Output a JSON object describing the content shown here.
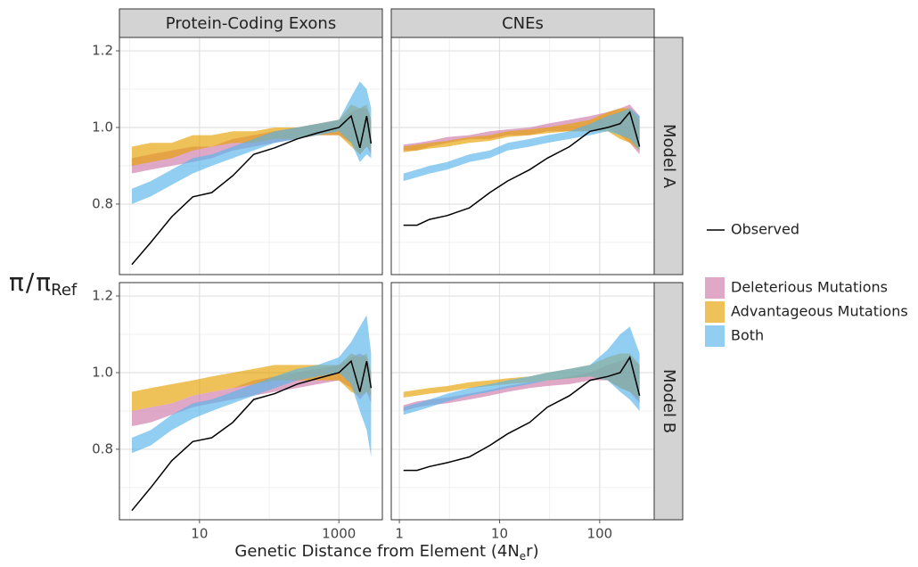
{
  "chart_data": {
    "type": "ribbon",
    "x_label": {
      "text": "Genetic Distance from Element (4N",
      "subscript": "e",
      "suffix": "r)"
    },
    "y_label": {
      "parts": [
        "π",
        "/",
        "π"
      ],
      "subscript": "Ref"
    },
    "log_x": true,
    "grid": true,
    "series_styles": [
      {
        "name": "Deleterious Mutations",
        "color": "#cc79a7"
      },
      {
        "name": "Advantageous Mutations",
        "color": "#e69f00"
      },
      {
        "name": "Both",
        "color": "#56b4e9"
      }
    ],
    "observed_style": {
      "name": "Observed",
      "color": "#000000"
    },
    "columns": [
      {
        "label": "Protein-Coding Exons",
        "xlim": [
          0.71,
          4200
        ],
        "xticks": [
          10,
          1000
        ],
        "xminor": [
          1,
          100
        ],
        "x": [
          1.07,
          2,
          4,
          8,
          15,
          30,
          60,
          120,
          250,
          500,
          1000,
          1500,
          2000,
          2500,
          2900
        ]
      },
      {
        "label": "CNEs",
        "xlim": [
          0.83,
          350
        ],
        "xticks": [
          1,
          10,
          100
        ],
        "xminor": [
          3.16,
          31.6
        ],
        "x": [
          1.1,
          1.5,
          2,
          3,
          5,
          8,
          12,
          20,
          30,
          50,
          80,
          120,
          160,
          200,
          250
        ]
      }
    ],
    "rows": [
      {
        "label": "Model A",
        "ylim": [
          0.616,
          1.235
        ],
        "yticks": [
          0.8,
          {
            "value": 1,
            "label": "1.0"
          },
          1.2
        ],
        "yminor": [
          0.7,
          0.9,
          1.1
        ]
      },
      {
        "label": "Model B",
        "ylim": [
          0.616,
          1.235
        ],
        "yticks": [
          0.8,
          {
            "value": 1,
            "label": "1.0"
          },
          1.2
        ],
        "yminor": [
          0.7,
          0.9,
          1.1
        ]
      }
    ],
    "panels": [
      {
        "column": 0,
        "row": 0,
        "observed": [
          0.642,
          0.7,
          0.767,
          0.819,
          0.83,
          0.874,
          0.93,
          0.947,
          0.97,
          0.986,
          1.0,
          1.03,
          0.947,
          1.03,
          0.958
        ],
        "ribbons": [
          {
            "lower": [
              0.88,
              0.89,
              0.9,
              0.91,
              0.92,
              0.94,
              0.95,
              0.96,
              0.97,
              0.98,
              0.98,
              0.96,
              0.93,
              0.95,
              0.93
            ],
            "upper": [
              0.92,
              0.93,
              0.94,
              0.95,
              0.95,
              0.97,
              0.98,
              0.99,
              1.0,
              1.01,
              1.02,
              1.04,
              1.05,
              1.05,
              1.02
            ]
          },
          {
            "lower": [
              0.9,
              0.91,
              0.92,
              0.94,
              0.95,
              0.96,
              0.96,
              0.97,
              0.97,
              0.98,
              0.98,
              0.95,
              0.93,
              0.95,
              0.94
            ],
            "upper": [
              0.95,
              0.96,
              0.96,
              0.98,
              0.98,
              0.99,
              0.99,
              1.0,
              1.0,
              1.01,
              1.02,
              1.06,
              1.05,
              1.06,
              1.02
            ]
          },
          {
            "lower": [
              0.8,
              0.82,
              0.85,
              0.88,
              0.9,
              0.92,
              0.94,
              0.96,
              0.97,
              0.98,
              0.99,
              0.96,
              0.91,
              0.93,
              0.92
            ],
            "upper": [
              0.84,
              0.86,
              0.89,
              0.92,
              0.93,
              0.95,
              0.97,
              0.99,
              1.0,
              1.01,
              1.02,
              1.08,
              1.12,
              1.1,
              1.05
            ]
          }
        ]
      },
      {
        "column": 1,
        "row": 0,
        "observed": [
          0.745,
          0.745,
          0.76,
          0.77,
          0.79,
          0.83,
          0.86,
          0.89,
          0.92,
          0.95,
          0.99,
          1.0,
          1.01,
          1.04,
          0.95
        ],
        "ribbons": [
          {
            "lower": [
              0.94,
              0.94,
              0.95,
              0.96,
              0.97,
              0.97,
              0.98,
              0.98,
              0.99,
              0.99,
              0.99,
              1.0,
              0.98,
              0.96,
              0.93
            ],
            "upper": [
              0.955,
              0.96,
              0.965,
              0.975,
              0.98,
              0.99,
              0.995,
              1.0,
              1.01,
              1.02,
              1.03,
              1.04,
              1.05,
              1.06,
              1.03
            ]
          },
          {
            "lower": [
              0.935,
              0.94,
              0.945,
              0.95,
              0.96,
              0.965,
              0.975,
              0.98,
              0.985,
              0.99,
              0.99,
              0.99,
              0.97,
              0.96,
              0.94
            ],
            "upper": [
              0.95,
              0.955,
              0.96,
              0.965,
              0.975,
              0.98,
              0.99,
              0.995,
              1.0,
              1.01,
              1.02,
              1.04,
              1.05,
              1.05,
              1.02
            ]
          },
          {
            "lower": [
              0.86,
              0.87,
              0.88,
              0.89,
              0.91,
              0.92,
              0.94,
              0.95,
              0.96,
              0.97,
              0.98,
              0.99,
              0.98,
              0.97,
              0.94
            ],
            "upper": [
              0.88,
              0.89,
              0.9,
              0.91,
              0.93,
              0.94,
              0.96,
              0.97,
              0.98,
              0.99,
              1.01,
              1.03,
              1.04,
              1.05,
              1.03
            ]
          }
        ]
      },
      {
        "column": 0,
        "row": 1,
        "observed": [
          0.64,
          0.7,
          0.77,
          0.82,
          0.83,
          0.87,
          0.93,
          0.945,
          0.97,
          0.985,
          1.0,
          1.03,
          0.95,
          1.03,
          0.96
        ],
        "ribbons": [
          {
            "lower": [
              0.86,
              0.87,
              0.89,
              0.91,
              0.92,
              0.93,
              0.94,
              0.95,
              0.96,
              0.97,
              0.98,
              0.96,
              0.93,
              0.95,
              0.92
            ],
            "upper": [
              0.9,
              0.91,
              0.92,
              0.94,
              0.95,
              0.96,
              0.98,
              0.99,
              1.0,
              1.01,
              1.02,
              1.04,
              1.05,
              1.04,
              1.0
            ]
          },
          {
            "lower": [
              0.9,
              0.91,
              0.92,
              0.94,
              0.95,
              0.96,
              0.97,
              0.98,
              0.98,
              0.98,
              0.98,
              0.95,
              0.94,
              0.95,
              0.94
            ],
            "upper": [
              0.95,
              0.96,
              0.97,
              0.98,
              0.99,
              1.0,
              1.01,
              1.02,
              1.02,
              1.02,
              1.02,
              1.05,
              1.04,
              1.05,
              1.0
            ]
          },
          {
            "lower": [
              0.79,
              0.81,
              0.85,
              0.88,
              0.9,
              0.92,
              0.94,
              0.96,
              0.98,
              0.99,
              1.0,
              0.97,
              0.9,
              0.85,
              0.78
            ],
            "upper": [
              0.83,
              0.85,
              0.89,
              0.92,
              0.93,
              0.95,
              0.97,
              0.99,
              1.01,
              1.02,
              1.04,
              1.08,
              1.12,
              1.15,
              1.05
            ]
          }
        ]
      },
      {
        "column": 1,
        "row": 1,
        "observed": [
          0.745,
          0.745,
          0.755,
          0.765,
          0.78,
          0.81,
          0.84,
          0.87,
          0.91,
          0.94,
          0.98,
          0.99,
          1.0,
          1.04,
          0.94
        ],
        "ribbons": [
          {
            "lower": [
              0.9,
              0.91,
              0.915,
              0.92,
              0.93,
              0.94,
              0.95,
              0.96,
              0.965,
              0.97,
              0.98,
              0.98,
              0.96,
              0.95,
              0.92
            ],
            "upper": [
              0.915,
              0.925,
              0.93,
              0.935,
              0.945,
              0.955,
              0.965,
              0.975,
              0.98,
              0.99,
              1.0,
              1.02,
              1.03,
              1.04,
              1.02
            ]
          },
          {
            "lower": [
              0.935,
              0.94,
              0.945,
              0.95,
              0.96,
              0.965,
              0.97,
              0.975,
              0.98,
              0.985,
              0.99,
              0.98,
              0.96,
              0.95,
              0.93
            ],
            "upper": [
              0.95,
              0.955,
              0.96,
              0.965,
              0.975,
              0.98,
              0.985,
              0.99,
              1.0,
              1.01,
              1.02,
              1.04,
              1.05,
              1.05,
              1.02
            ]
          },
          {
            "lower": [
              0.89,
              0.9,
              0.91,
              0.925,
              0.94,
              0.95,
              0.96,
              0.97,
              0.98,
              0.985,
              0.99,
              0.98,
              0.95,
              0.93,
              0.9
            ],
            "upper": [
              0.91,
              0.92,
              0.93,
              0.945,
              0.96,
              0.97,
              0.98,
              0.99,
              1.0,
              1.01,
              1.02,
              1.06,
              1.1,
              1.12,
              1.05
            ]
          }
        ]
      }
    ]
  }
}
